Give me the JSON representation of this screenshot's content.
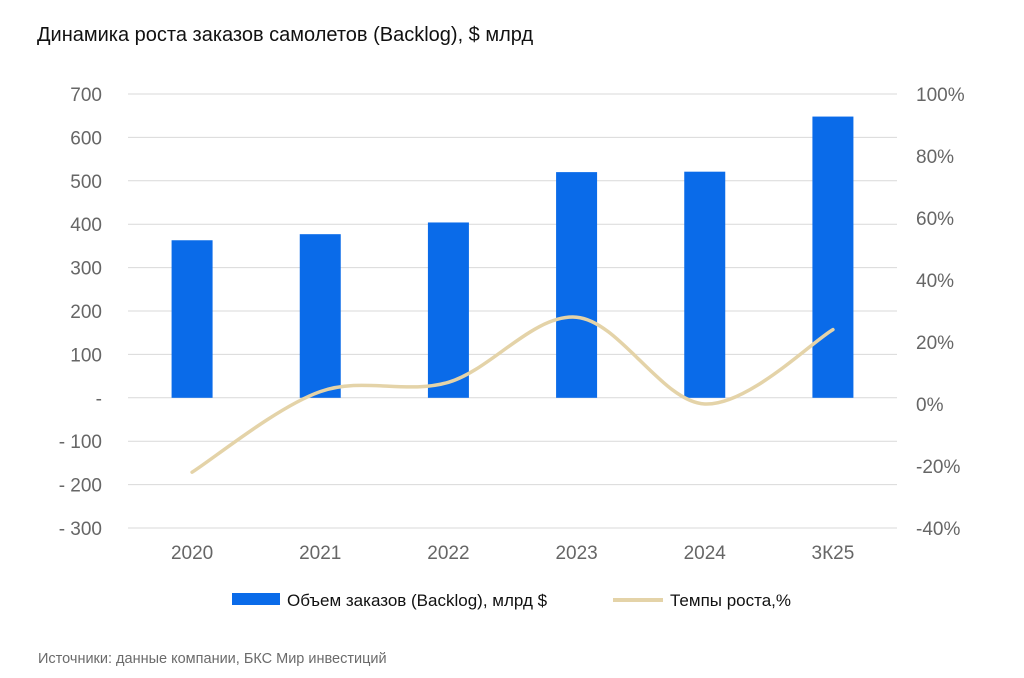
{
  "title": "Динамика роста заказов самолетов (Backlog), $ млрд",
  "source": "Источники: данные компании, БКС Мир инвестиций",
  "chart_data": {
    "type": "bar",
    "categories": [
      "2020",
      "2021",
      "2022",
      "2023",
      "2024",
      "3К25"
    ],
    "series": [
      {
        "name": "Объем заказов (Backlog), млрд $",
        "type": "bar",
        "axis": "left",
        "color": "#0A6BE9",
        "values": [
          363,
          377,
          404,
          520,
          521,
          648
        ]
      },
      {
        "name": "Темпы роста,%",
        "type": "line",
        "axis": "right",
        "color": "#E4D3A8",
        "values": [
          -22,
          4,
          7,
          28,
          0,
          24
        ]
      }
    ],
    "y_left": {
      "min": -300,
      "max": 700,
      "ticks": [
        700,
        600,
        500,
        400,
        300,
        200,
        100,
        0,
        -100,
        -200,
        -300
      ],
      "tick_labels": [
        "700",
        "600",
        "500",
        "400",
        "300",
        "200",
        "100",
        "-",
        "- 100",
        "- 200",
        "- 300"
      ]
    },
    "y_right": {
      "min": -40,
      "max": 100,
      "ticks": [
        100,
        80,
        60,
        40,
        20,
        0,
        -20,
        -40
      ],
      "tick_labels": [
        "100%",
        "80%",
        "60%",
        "40%",
        "20%",
        "0%",
        "-20%",
        "-40%"
      ]
    },
    "grid": true,
    "legend": "bottom"
  }
}
